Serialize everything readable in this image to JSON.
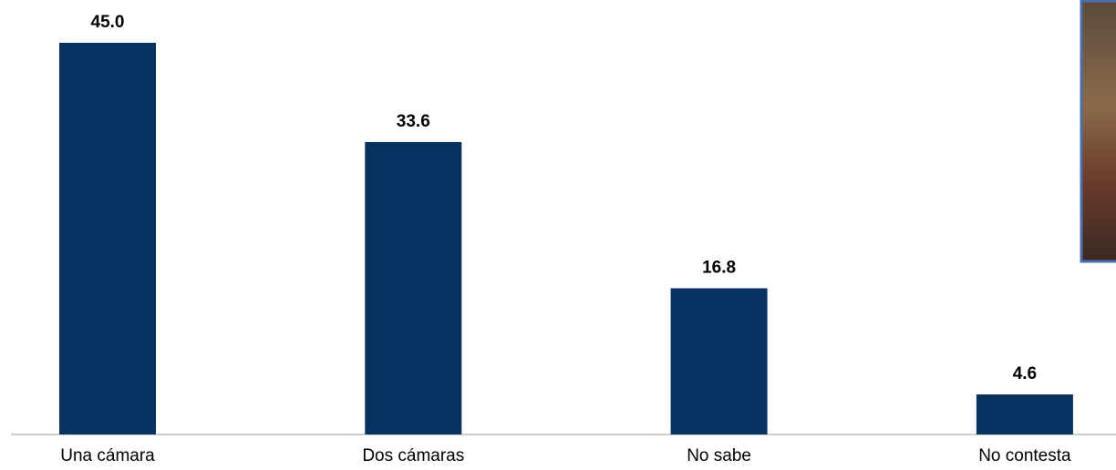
{
  "chart_data": {
    "type": "bar",
    "categories": [
      "Una cámara",
      "Dos cámaras",
      "No sabe",
      "No contesta"
    ],
    "values": [
      45.0,
      33.6,
      16.8,
      4.6
    ],
    "value_labels": [
      "45.0",
      "33.6",
      "16.8",
      "4.6"
    ],
    "color": "#07315f"
  }
}
